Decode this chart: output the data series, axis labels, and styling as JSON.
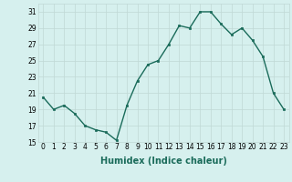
{
  "x": [
    0,
    1,
    2,
    3,
    4,
    5,
    6,
    7,
    8,
    9,
    10,
    11,
    12,
    13,
    14,
    15,
    16,
    17,
    18,
    19,
    20,
    21,
    22,
    23
  ],
  "y": [
    20.5,
    19.0,
    19.5,
    18.5,
    17.0,
    16.5,
    16.2,
    15.2,
    19.5,
    22.5,
    24.5,
    25.0,
    27.0,
    29.3,
    29.0,
    31.0,
    31.0,
    29.5,
    28.2,
    29.0,
    27.5,
    25.5,
    21.0,
    19.0
  ],
  "line_color": "#1a6b5a",
  "marker": "s",
  "markersize": 2.0,
  "linewidth": 1.0,
  "xlabel": "Humidex (Indice chaleur)",
  "xlim": [
    -0.5,
    23.5
  ],
  "ylim": [
    15,
    32
  ],
  "yticks": [
    15,
    17,
    19,
    21,
    23,
    25,
    27,
    29,
    31
  ],
  "xticks": [
    0,
    1,
    2,
    3,
    4,
    5,
    6,
    7,
    8,
    9,
    10,
    11,
    12,
    13,
    14,
    15,
    16,
    17,
    18,
    19,
    20,
    21,
    22,
    23
  ],
  "bg_color": "#d6f0ee",
  "grid_color": "#c0d8d5",
  "tick_fontsize": 5.5,
  "label_fontsize": 7
}
